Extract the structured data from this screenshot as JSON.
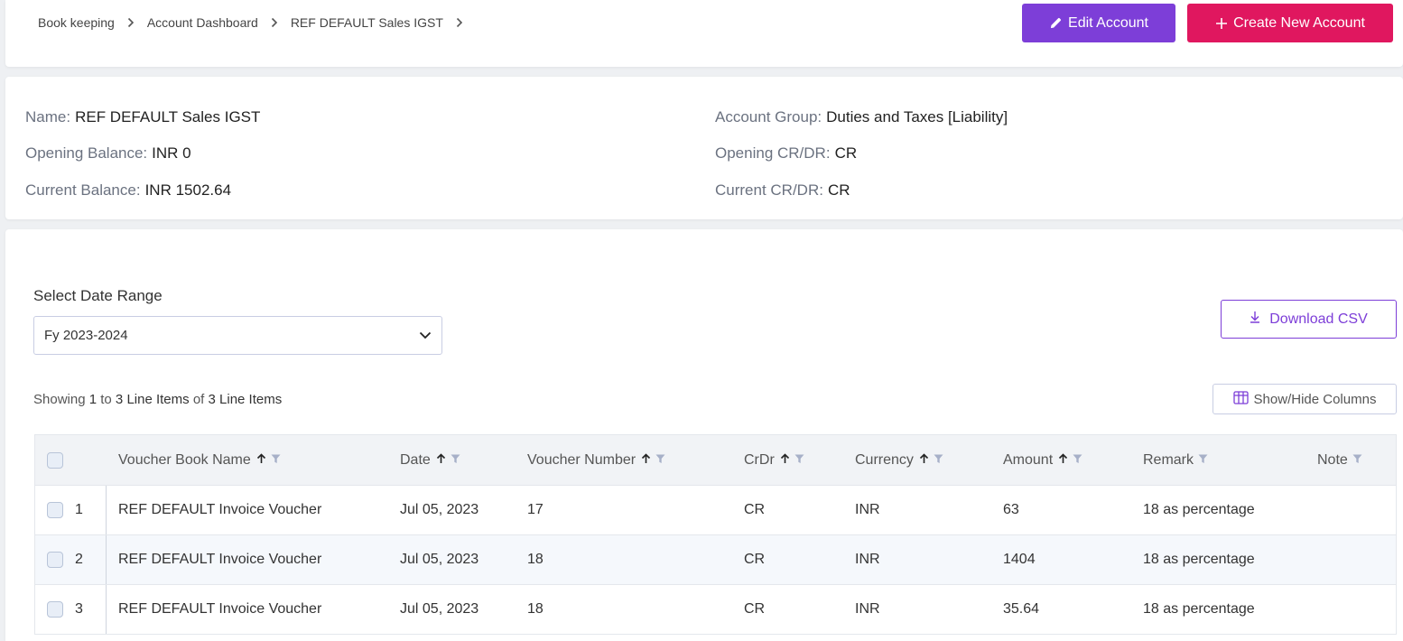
{
  "breadcrumb": [
    {
      "label": "Book keeping"
    },
    {
      "label": "Account Dashboard"
    },
    {
      "label": "REF DEFAULT Sales IGST"
    }
  ],
  "actions": {
    "edit_label": "Edit Account",
    "create_label": "Create New Account"
  },
  "account": {
    "name_label": "Name:",
    "name": "REF DEFAULT Sales IGST",
    "opening_balance_label": "Opening Balance:",
    "opening_balance": "INR 0",
    "current_balance_label": "Current Balance:",
    "current_balance": "INR 1502.64",
    "group_label": "Account Group:",
    "group": "Duties and Taxes [Liability]",
    "opening_crdr_label": "Opening CR/DR:",
    "opening_crdr": "CR",
    "current_crdr_label": "Current CR/DR:",
    "current_crdr": "CR"
  },
  "filters": {
    "date_range_label": "Select Date Range",
    "date_range_value": "Fy 2023-2024",
    "download_label": "Download CSV",
    "columns_label": "Show/Hide Columns"
  },
  "summary": {
    "prefix": "Showing",
    "from": "1",
    "to_word": "to",
    "to": "3",
    "unit1": "Line Items",
    "of_word": "of",
    "total": "3",
    "unit2": "Line Items"
  },
  "table": {
    "headers": {
      "voucher_book": "Voucher Book Name",
      "date": "Date",
      "voucher_number": "Voucher Number",
      "crdr": "CrDr",
      "currency": "Currency",
      "amount": "Amount",
      "remark": "Remark",
      "note": "Note"
    },
    "rows": [
      {
        "num": "1",
        "voucher_book": "REF DEFAULT Invoice Voucher",
        "date": "Jul 05, 2023",
        "voucher_number": "17",
        "crdr": "CR",
        "currency": "INR",
        "amount": "63",
        "remark": "18 as percentage",
        "note": ""
      },
      {
        "num": "2",
        "voucher_book": "REF DEFAULT Invoice Voucher",
        "date": "Jul 05, 2023",
        "voucher_number": "18",
        "crdr": "CR",
        "currency": "INR",
        "amount": "1404",
        "remark": "18 as percentage",
        "note": ""
      },
      {
        "num": "3",
        "voucher_book": "REF DEFAULT Invoice Voucher",
        "date": "Jul 05, 2023",
        "voucher_number": "18",
        "crdr": "CR",
        "currency": "INR",
        "amount": "35.64",
        "remark": "18 as percentage",
        "note": ""
      }
    ]
  },
  "colors": {
    "edit_button": "#7d3ed8",
    "create_button": "#e0175f",
    "outline_accent": "#7d3ed8"
  }
}
